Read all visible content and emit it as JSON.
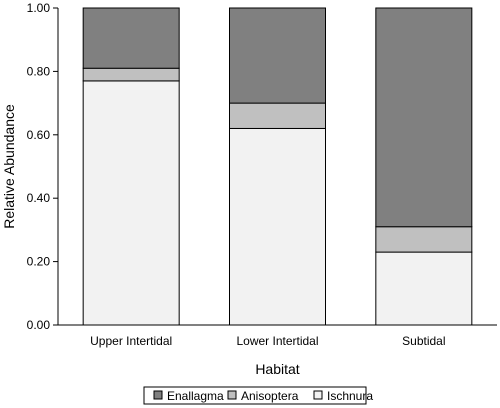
{
  "chart_data": {
    "type": "bar",
    "stacked": true,
    "categories": [
      "Upper Intertidal",
      "Lower Intertidal",
      "Subtidal"
    ],
    "series": [
      {
        "name": "Ischnura",
        "values": [
          0.77,
          0.62,
          0.23
        ],
        "color": "#f2f2f2"
      },
      {
        "name": "Anisoptera",
        "values": [
          0.04,
          0.08,
          0.08
        ],
        "color": "#c0c0c0"
      },
      {
        "name": "Enallagma",
        "values": [
          0.19,
          0.3,
          0.69
        ],
        "color": "#808080"
      }
    ],
    "legend_order": [
      "Enallagma",
      "Anisoptera",
      "Ischnura"
    ],
    "xlabel": "Habitat",
    "ylabel": "Relative Abundance",
    "ylim": [
      0,
      1
    ],
    "yticks": [
      0,
      0.2,
      0.4,
      0.6,
      0.8,
      1.0
    ],
    "ytick_labels": [
      "0.00",
      "0.20",
      "0.40",
      "0.60",
      "0.80",
      "1.00"
    ],
    "grid": false,
    "legend_position": "bottom"
  }
}
